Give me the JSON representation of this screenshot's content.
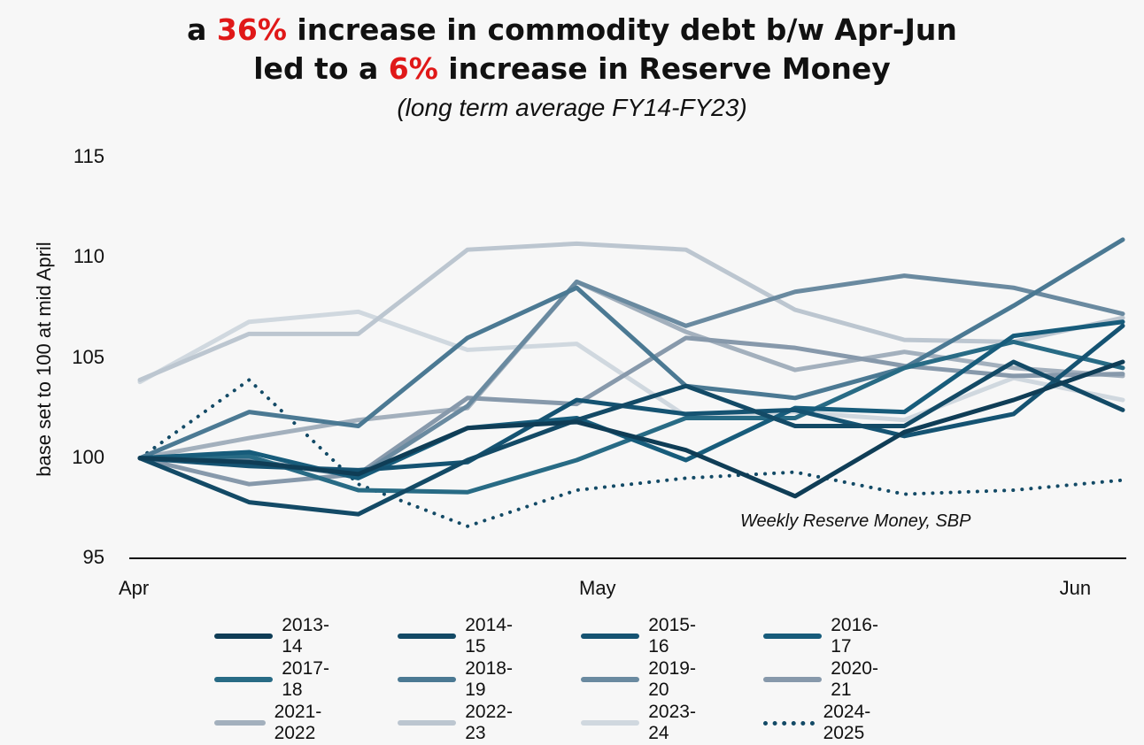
{
  "title": {
    "line1_pre": "a ",
    "line1_hl": "36%",
    "line1_post": " increase in commodity debt b/w Apr-Jun",
    "line2_pre": "led to a ",
    "line2_hl": "6%",
    "line2_post": " increase in Reserve Money",
    "highlight_color": "#e01818"
  },
  "subtitle": "(long term average FY14-FY23)",
  "source": "Weekly Reserve Money, SBP",
  "chart_data": {
    "type": "line",
    "ylabel": "base set to 100 at mid April",
    "ylim": [
      95,
      115
    ],
    "yticks": [
      "115",
      "110",
      "105",
      "100",
      "95"
    ],
    "xticks": [
      "Apr",
      "May",
      "Jun"
    ],
    "xtick_positions": [
      0,
      4.2,
      8.6
    ],
    "x": [
      0,
      1,
      2,
      3,
      4,
      5,
      6,
      7,
      8,
      9
    ],
    "grid": false,
    "legend_position": "bottom",
    "series": [
      {
        "name": "2013-14",
        "color": "#0f3d56",
        "dash": false,
        "values": [
          100,
          99.8,
          99.2,
          101.5,
          101.8,
          100.4,
          98.1,
          101.3,
          102.9,
          104.8
        ]
      },
      {
        "name": "2014-15",
        "color": "#134a66",
        "dash": false,
        "values": [
          100,
          97.8,
          97.2,
          99.9,
          101.9,
          103.6,
          101.6,
          101.6,
          104.8,
          102.4
        ]
      },
      {
        "name": "2015-16",
        "color": "#155372",
        "dash": false,
        "values": [
          100,
          99.6,
          99.4,
          99.8,
          102.9,
          102.2,
          102.4,
          101.1,
          102.2,
          106.6
        ]
      },
      {
        "name": "2016-17",
        "color": "#175c7b",
        "dash": false,
        "values": [
          100,
          100.3,
          99.0,
          101.5,
          102.0,
          99.9,
          102.5,
          102.3,
          106.1,
          106.8
        ]
      },
      {
        "name": "2017-18",
        "color": "#286b85",
        "dash": false,
        "values": [
          100,
          100.1,
          98.4,
          98.3,
          99.9,
          102.0,
          102.0,
          104.5,
          105.8,
          104.5
        ]
      },
      {
        "name": "2018-19",
        "color": "#4b7993",
        "dash": false,
        "values": [
          100,
          102.3,
          101.6,
          106.0,
          108.5,
          103.6,
          103.0,
          104.5,
          107.6,
          110.9
        ]
      },
      {
        "name": "2019-20",
        "color": "#6a8aa0",
        "dash": false,
        "values": [
          100,
          99.9,
          99.1,
          102.6,
          108.8,
          106.6,
          108.3,
          109.1,
          108.5,
          107.2
        ]
      },
      {
        "name": "2020-21",
        "color": "#8799ab",
        "dash": false,
        "values": [
          100,
          98.7,
          99.2,
          103.0,
          102.7,
          106.0,
          105.5,
          104.6,
          104.1,
          104.2
        ]
      },
      {
        "name": "2021-2022",
        "color": "#a3b0bd",
        "dash": false,
        "values": [
          100,
          101.0,
          101.9,
          102.5,
          108.8,
          106.3,
          104.4,
          105.3,
          104.5,
          104.1
        ]
      },
      {
        "name": "2022-23",
        "color": "#bcc6d0",
        "dash": false,
        "values": [
          103.9,
          106.2,
          106.2,
          110.4,
          110.7,
          110.4,
          107.4,
          105.9,
          105.8,
          107.0
        ]
      },
      {
        "name": "2023-24",
        "color": "#d0d8df",
        "dash": false,
        "values": [
          103.8,
          106.8,
          107.3,
          105.4,
          105.7,
          102.1,
          102.3,
          101.9,
          104.0,
          102.9
        ]
      },
      {
        "name": "2024-2025",
        "color": "#134a66",
        "dash": true,
        "values": [
          100,
          103.9,
          98.7,
          96.6,
          98.4,
          99.0,
          99.3,
          98.2,
          98.4,
          98.9
        ]
      }
    ]
  }
}
